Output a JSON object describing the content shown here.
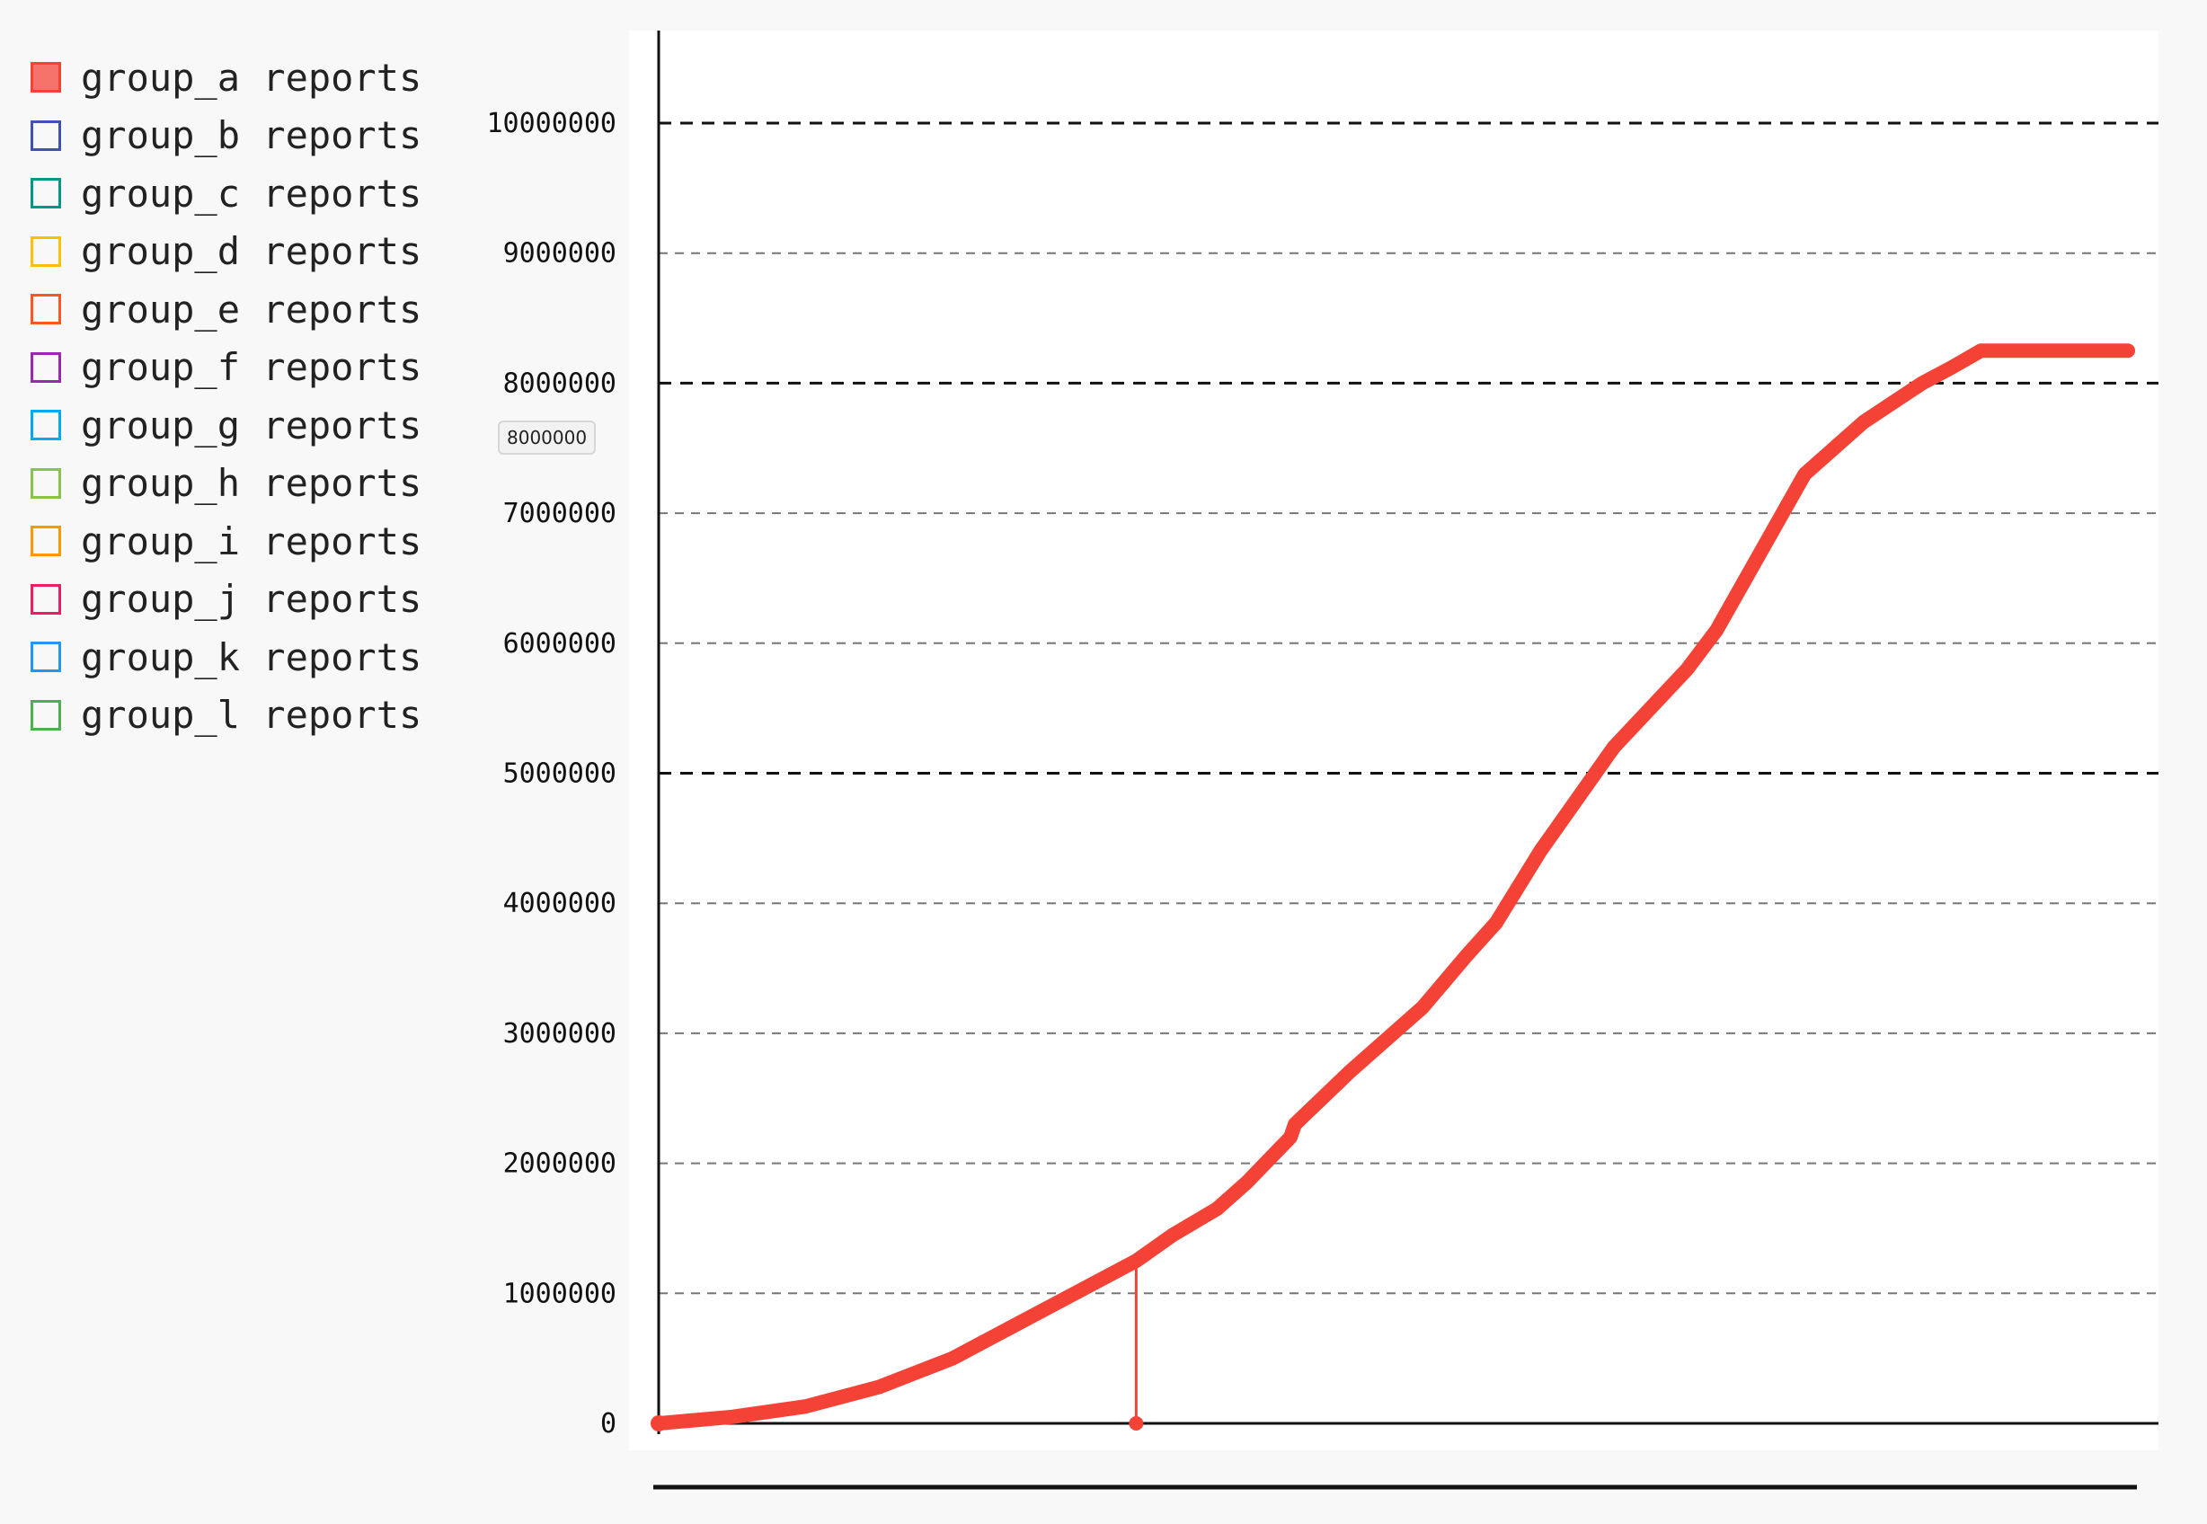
{
  "legend": {
    "items": [
      {
        "label": "group_a reports",
        "color": "#f44336",
        "filled": true
      },
      {
        "label": "group_b reports",
        "color": "#3f51b5",
        "filled": false
      },
      {
        "label": "group_c reports",
        "color": "#009688",
        "filled": false
      },
      {
        "label": "group_d reports",
        "color": "#ffc107",
        "filled": false
      },
      {
        "label": "group_e reports",
        "color": "#ff5722",
        "filled": false
      },
      {
        "label": "group_f reports",
        "color": "#9c27b0",
        "filled": false
      },
      {
        "label": "group_g reports",
        "color": "#03a9f4",
        "filled": false
      },
      {
        "label": "group_h reports",
        "color": "#8bc34a",
        "filled": false
      },
      {
        "label": "group_i reports",
        "color": "#ff9800",
        "filled": false
      },
      {
        "label": "group_j reports",
        "color": "#e91e63",
        "filled": false
      },
      {
        "label": "group_k reports",
        "color": "#2196f3",
        "filled": false
      },
      {
        "label": "group_l reports",
        "color": "#4caf50",
        "filled": false
      }
    ]
  },
  "tooltip": {
    "value": "8000000"
  },
  "chart_data": {
    "type": "line",
    "title": "",
    "xlabel": "",
    "ylabel": "",
    "ylim": [
      0,
      10700000
    ],
    "xlim": [
      0,
      100
    ],
    "y_ticks": [
      0,
      1000000,
      2000000,
      3000000,
      4000000,
      5000000,
      6000000,
      7000000,
      8000000,
      9000000,
      10000000
    ],
    "y_tick_labels": [
      "0",
      "1000000",
      "2000000",
      "3000000",
      "4000000",
      "5000000",
      "6000000",
      "7000000",
      "8000000",
      "9000000",
      "10000000"
    ],
    "major_gridlines": [
      0,
      5000000,
      8000000,
      10000000
    ],
    "grid": true,
    "legend_position": "left",
    "hover_marker": {
      "x": 32.5,
      "y": 1250000
    },
    "series": [
      {
        "name": "group_a reports",
        "color": "#f44336",
        "x": [
          0,
          5,
          10,
          15,
          20,
          25,
          30,
          32.5,
          35,
          38,
          40,
          43,
          43.3,
          47,
          52,
          55,
          57,
          60,
          65,
          70,
          72,
          74,
          76,
          78,
          80,
          82,
          84,
          86,
          88,
          90,
          95,
          100
        ],
        "y": [
          0,
          50000,
          130000,
          280000,
          500000,
          800000,
          1100000,
          1250000,
          1450000,
          1650000,
          1850000,
          2200000,
          2300000,
          2700000,
          3200000,
          3600000,
          3850000,
          4400000,
          5200000,
          5800000,
          6100000,
          6500000,
          6900000,
          7300000,
          7500000,
          7700000,
          7850000,
          8000000,
          8120000,
          8250000,
          8250000,
          8250000
        ]
      }
    ],
    "series_points_note": ""
  }
}
